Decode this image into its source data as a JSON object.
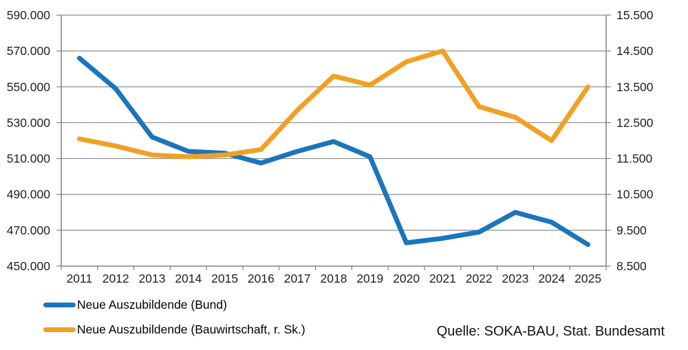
{
  "chart_data": {
    "type": "line",
    "categories": [
      "2011",
      "2012",
      "2013",
      "2014",
      "2015",
      "2016",
      "2017",
      "2018",
      "2019",
      "2020",
      "2021",
      "2022",
      "2023",
      "2024",
      "2025"
    ],
    "series": [
      {
        "name": "Neue Auszubildende (Bund)",
        "axis": "left",
        "color": "#1B75BC",
        "values": [
          566000,
          549000,
          522000,
          514000,
          513000,
          507500,
          514000,
          519500,
          511000,
          463000,
          465500,
          469000,
          480000,
          474500,
          462000
        ]
      },
      {
        "name": "Neue Auszubildende (Bauwirtschaft, r. Sk.)",
        "axis": "right",
        "color": "#F0A125",
        "values": [
          12050,
          11850,
          11600,
          11550,
          11600,
          11750,
          12850,
          13800,
          13550,
          14200,
          14500,
          12950,
          12650,
          12000,
          13500
        ]
      }
    ],
    "left_axis": {
      "min": 450000,
      "max": 590000,
      "step": 20000,
      "tick_labels": [
        "590.000",
        "570.000",
        "550.000",
        "530.000",
        "510.000",
        "490.000",
        "470.000",
        "450.000"
      ]
    },
    "right_axis": {
      "min": 8500,
      "max": 15500,
      "step": 1000,
      "tick_labels": [
        "15.500",
        "14.500",
        "13.500",
        "12.500",
        "11.500",
        "10.500",
        "9.500",
        "8.500"
      ]
    },
    "grid": true,
    "legend_position": "bottom-left",
    "title": "",
    "xlabel": "",
    "ylabel": ""
  },
  "source_note": "Quelle: SOKA-BAU, Stat. Bundesamt",
  "colors": {
    "gridline": "#8C8C8C",
    "axis": "#808080",
    "tick_text": "#1f1f1f",
    "background": "#FFFFFF"
  }
}
